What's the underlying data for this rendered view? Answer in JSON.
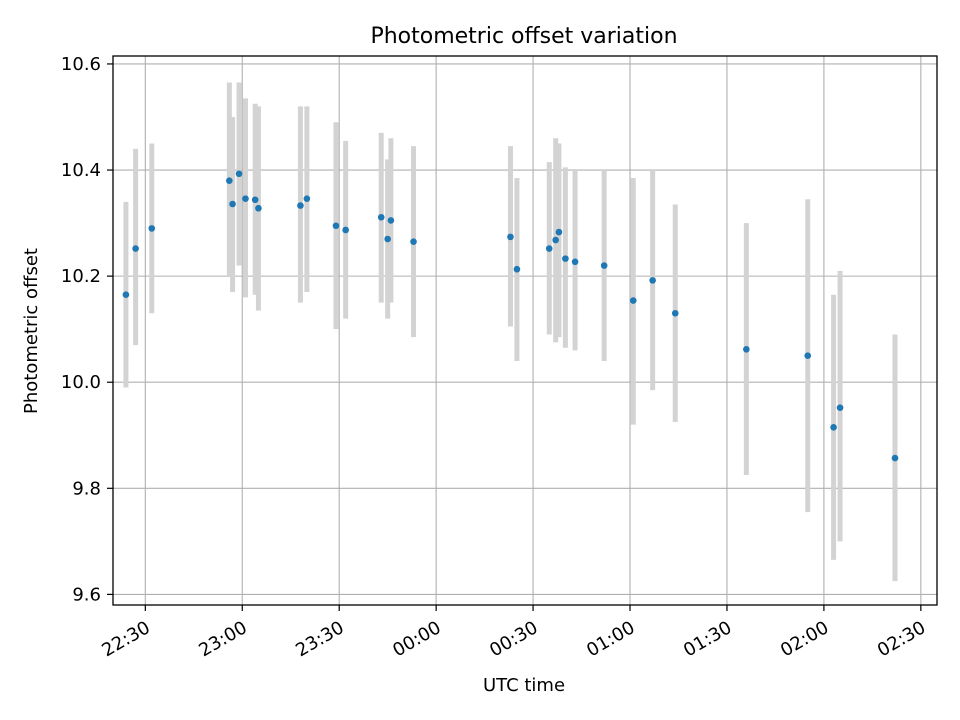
{
  "chart_data": {
    "type": "scatter",
    "title": "Photometric offset variation",
    "xlabel": "UTC time",
    "ylabel": "Photometric offset",
    "xlim": [
      "22:20",
      "02:35"
    ],
    "ylim": [
      9.58,
      10.615
    ],
    "grid": true,
    "colors": {
      "points": "#1f77b4",
      "errorbars": "#d3d3d3",
      "grid": "#b0b0b0",
      "axes": "#000000"
    },
    "x_ticks": [
      {
        "value": "22:30",
        "label": "22:30"
      },
      {
        "value": "23:00",
        "label": "23:00"
      },
      {
        "value": "23:30",
        "label": "23:30"
      },
      {
        "value": "00:00",
        "label": "00:00"
      },
      {
        "value": "00:30",
        "label": "00:30"
      },
      {
        "value": "01:00",
        "label": "01:00"
      },
      {
        "value": "01:30",
        "label": "01:30"
      },
      {
        "value": "02:00",
        "label": "02:00"
      },
      {
        "value": "02:30",
        "label": "02:30"
      }
    ],
    "y_ticks": [
      {
        "value": 9.6,
        "label": "9.6"
      },
      {
        "value": 9.8,
        "label": "9.8"
      },
      {
        "value": 10.0,
        "label": "10.0"
      },
      {
        "value": 10.2,
        "label": "10.2"
      },
      {
        "value": 10.4,
        "label": "10.4"
      },
      {
        "value": 10.6,
        "label": "10.6"
      }
    ],
    "points": [
      {
        "x": "22:24",
        "y": 10.165,
        "ylow": 9.99,
        "yhigh": 10.34
      },
      {
        "x": "22:27",
        "y": 10.252,
        "ylow": 10.07,
        "yhigh": 10.44
      },
      {
        "x": "22:32",
        "y": 10.29,
        "ylow": 10.13,
        "yhigh": 10.45
      },
      {
        "x": "22:56",
        "y": 10.38,
        "ylow": 10.2,
        "yhigh": 10.565
      },
      {
        "x": "22:57",
        "y": 10.336,
        "ylow": 10.17,
        "yhigh": 10.5
      },
      {
        "x": "22:59",
        "y": 10.393,
        "ylow": 10.22,
        "yhigh": 10.565
      },
      {
        "x": "23:01",
        "y": 10.346,
        "ylow": 10.16,
        "yhigh": 10.535
      },
      {
        "x": "23:04",
        "y": 10.344,
        "ylow": 10.165,
        "yhigh": 10.525
      },
      {
        "x": "23:05",
        "y": 10.328,
        "ylow": 10.135,
        "yhigh": 10.52
      },
      {
        "x": "23:18",
        "y": 10.333,
        "ylow": 10.15,
        "yhigh": 10.52
      },
      {
        "x": "23:20",
        "y": 10.346,
        "ylow": 10.17,
        "yhigh": 10.52
      },
      {
        "x": "23:29",
        "y": 10.295,
        "ylow": 10.1,
        "yhigh": 10.49
      },
      {
        "x": "23:32",
        "y": 10.287,
        "ylow": 10.12,
        "yhigh": 10.455
      },
      {
        "x": "23:43",
        "y": 10.311,
        "ylow": 10.15,
        "yhigh": 10.47
      },
      {
        "x": "23:45",
        "y": 10.27,
        "ylow": 10.12,
        "yhigh": 10.42
      },
      {
        "x": "23:46",
        "y": 10.305,
        "ylow": 10.15,
        "yhigh": 10.46
      },
      {
        "x": "23:53",
        "y": 10.265,
        "ylow": 10.085,
        "yhigh": 10.445
      },
      {
        "x": "00:23",
        "y": 10.274,
        "ylow": 10.105,
        "yhigh": 10.445
      },
      {
        "x": "00:25",
        "y": 10.213,
        "ylow": 10.04,
        "yhigh": 10.385
      },
      {
        "x": "00:35",
        "y": 10.252,
        "ylow": 10.09,
        "yhigh": 10.415
      },
      {
        "x": "00:37",
        "y": 10.268,
        "ylow": 10.075,
        "yhigh": 10.46
      },
      {
        "x": "00:38",
        "y": 10.283,
        "ylow": 10.085,
        "yhigh": 10.45
      },
      {
        "x": "00:40",
        "y": 10.233,
        "ylow": 10.065,
        "yhigh": 10.405
      },
      {
        "x": "00:43",
        "y": 10.227,
        "ylow": 10.06,
        "yhigh": 10.4
      },
      {
        "x": "00:52",
        "y": 10.22,
        "ylow": 10.04,
        "yhigh": 10.4
      },
      {
        "x": "01:01",
        "y": 10.154,
        "ylow": 9.92,
        "yhigh": 10.385
      },
      {
        "x": "01:07",
        "y": 10.192,
        "ylow": 9.985,
        "yhigh": 10.4
      },
      {
        "x": "01:14",
        "y": 10.13,
        "ylow": 9.925,
        "yhigh": 10.335
      },
      {
        "x": "01:36",
        "y": 10.062,
        "ylow": 9.825,
        "yhigh": 10.3
      },
      {
        "x": "01:55",
        "y": 10.05,
        "ylow": 9.755,
        "yhigh": 10.345
      },
      {
        "x": "02:03",
        "y": 9.915,
        "ylow": 9.665,
        "yhigh": 10.165
      },
      {
        "x": "02:05",
        "y": 9.952,
        "ylow": 9.7,
        "yhigh": 10.21
      },
      {
        "x": "02:22",
        "y": 9.857,
        "ylow": 9.625,
        "yhigh": 10.09
      }
    ]
  }
}
